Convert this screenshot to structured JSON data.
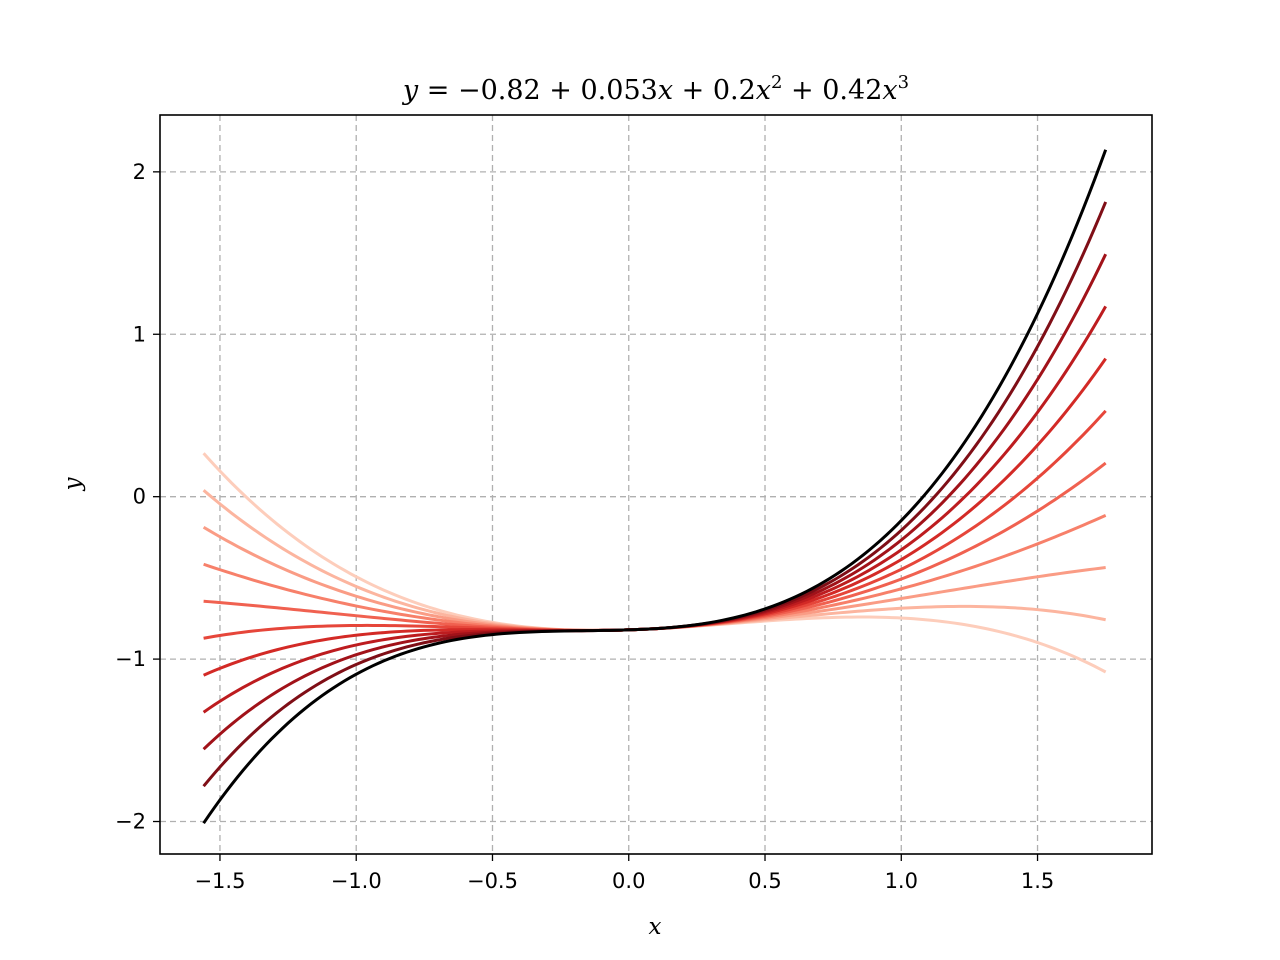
{
  "chart_data": {
    "type": "line",
    "title_parts": {
      "y": "y",
      "eq": " = −0.82 + 0.053",
      "x1": "x",
      "p2": " + 0.2",
      "x2": "x",
      "e2": "2",
      "p3": " + 0.42",
      "x3": "x",
      "e3": "3"
    },
    "xlabel": "x",
    "ylabel": "y",
    "xlim": [
      -1.72,
      1.92
    ],
    "ylim": [
      -2.2,
      2.35
    ],
    "xticks": [
      -1.5,
      -1.0,
      -0.5,
      0.0,
      0.5,
      1.0,
      1.5
    ],
    "xtick_labels": [
      "−1.5",
      "−1.0",
      "−0.5",
      "0.0",
      "0.5",
      "1.0",
      "1.5"
    ],
    "yticks": [
      -2,
      -1,
      0,
      1,
      2
    ],
    "ytick_labels": [
      "−2",
      "−1",
      "0",
      "1",
      "2"
    ],
    "grid": true,
    "x_range": [
      -1.56,
      1.75
    ],
    "series": [
      {
        "coefficients": [
          -0.82,
          0.053,
          0.2,
          0.42
        ],
        "color": "#000000"
      },
      {
        "coefficients": [
          -0.82,
          0.053,
          0.2,
          0.36
        ],
        "color": "#7f0e16"
      },
      {
        "coefficients": [
          -0.82,
          0.053,
          0.2,
          0.3
        ],
        "color": "#a11219"
      },
      {
        "coefficients": [
          -0.82,
          0.053,
          0.2,
          0.24
        ],
        "color": "#bd1c1f"
      },
      {
        "coefficients": [
          -0.82,
          0.053,
          0.2,
          0.18
        ],
        "color": "#d32a26"
      },
      {
        "coefficients": [
          -0.82,
          0.053,
          0.2,
          0.12
        ],
        "color": "#e6463a"
      },
      {
        "coefficients": [
          -0.82,
          0.053,
          0.2,
          0.06
        ],
        "color": "#f06150"
      },
      {
        "coefficients": [
          -0.82,
          0.053,
          0.2,
          0.0
        ],
        "color": "#f7806a"
      },
      {
        "coefficients": [
          -0.82,
          0.053,
          0.2,
          -0.06
        ],
        "color": "#fa9c85"
      },
      {
        "coefficients": [
          -0.82,
          0.053,
          0.2,
          -0.12
        ],
        "color": "#fcb59f"
      },
      {
        "coefficients": [
          -0.82,
          0.053,
          0.2,
          -0.18
        ],
        "color": "#fdcdbb"
      }
    ]
  }
}
